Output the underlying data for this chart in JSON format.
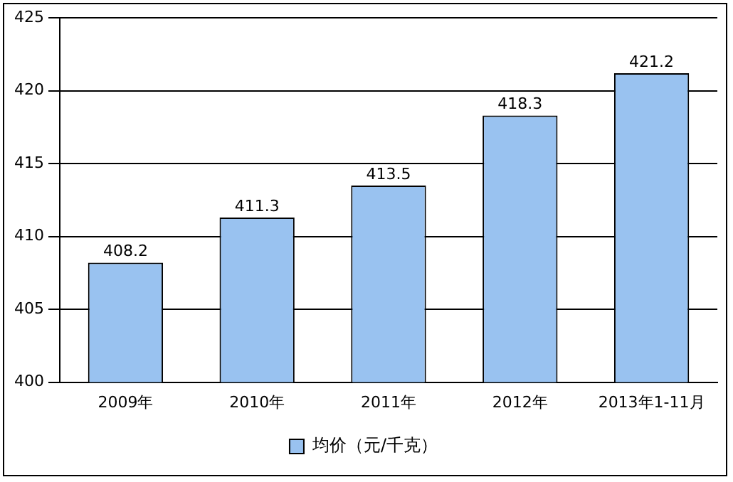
{
  "chart_data": {
    "type": "bar",
    "categories": [
      "2009年",
      "2010年",
      "2011年",
      "2012年",
      "2013年1-11月"
    ],
    "series": [
      {
        "name": "均价（元/千克）",
        "color": "#99c2f0",
        "values": [
          408.2,
          411.3,
          413.5,
          418.3,
          421.2
        ]
      }
    ],
    "ylim": [
      400,
      425
    ],
    "yticks": [
      400,
      405,
      410,
      415,
      420,
      425
    ],
    "grid": "y",
    "legend": "bottom",
    "data_labels": true
  }
}
